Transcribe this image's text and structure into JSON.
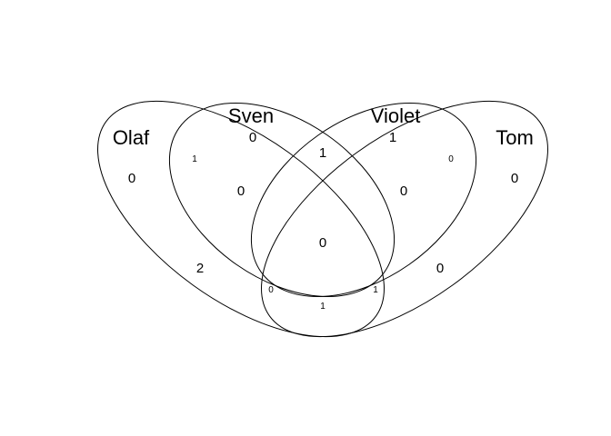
{
  "sets": [
    "Olaf",
    "Sven",
    "Violet",
    "Tom"
  ],
  "regions": [
    {
      "sets": [
        "Olaf"
      ],
      "count": "0"
    },
    {
      "sets": [
        "Sven"
      ],
      "count": "0"
    },
    {
      "sets": [
        "Violet"
      ],
      "count": "1"
    },
    {
      "sets": [
        "Tom"
      ],
      "count": "0"
    },
    {
      "sets": [
        "Olaf",
        "Sven"
      ],
      "count": "1"
    },
    {
      "sets": [
        "Sven",
        "Violet"
      ],
      "count": "1"
    },
    {
      "sets": [
        "Violet",
        "Tom"
      ],
      "count": "0"
    },
    {
      "sets": [
        "Olaf",
        "Sven",
        "Violet"
      ],
      "count": "0"
    },
    {
      "sets": [
        "Sven",
        "Violet",
        "Tom"
      ],
      "count": "0"
    },
    {
      "sets": [
        "Olaf",
        "Sven",
        "Violet",
        "Tom"
      ],
      "count": "0"
    },
    {
      "sets": [
        "Olaf",
        "Violet"
      ],
      "count": "2"
    },
    {
      "sets": [
        "Sven",
        "Tom"
      ],
      "count": "0"
    },
    {
      "sets": [
        "Olaf",
        "Violet",
        "Tom"
      ],
      "count": "0"
    },
    {
      "sets": [
        "Olaf",
        "Sven",
        "Tom"
      ],
      "count": "1"
    },
    {
      "sets": [
        "Olaf",
        "Tom"
      ],
      "count": "1"
    }
  ]
}
